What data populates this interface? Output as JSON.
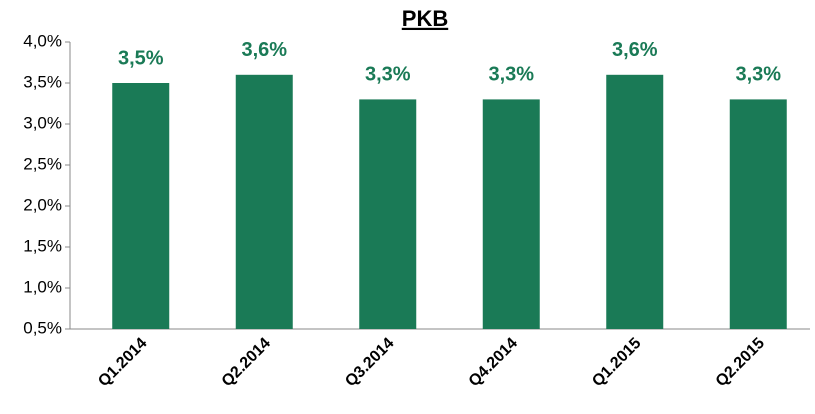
{
  "chart_data": {
    "type": "bar",
    "title": "PKB",
    "categories": [
      "Q1.2014",
      "Q2.2014",
      "Q3.2014",
      "Q4.2014",
      "Q1.2015",
      "Q2.2015"
    ],
    "values": [
      3.5,
      3.6,
      3.3,
      3.3,
      3.6,
      3.3
    ],
    "value_labels": [
      "3,5%",
      "3,6%",
      "3,3%",
      "3,3%",
      "3,6%",
      "3,3%"
    ],
    "color": "#1a7a56",
    "ylim": [
      0.5,
      4.0
    ],
    "yticks": [
      {
        "value": 0.5,
        "label": "0,5%"
      },
      {
        "value": 1.0,
        "label": "1,0%"
      },
      {
        "value": 1.5,
        "label": "1,5%"
      },
      {
        "value": 2.0,
        "label": "2,0%"
      },
      {
        "value": 2.5,
        "label": "2,5%"
      },
      {
        "value": 3.0,
        "label": "3,0%"
      },
      {
        "value": 3.5,
        "label": "3,5%"
      },
      {
        "value": 4.0,
        "label": "4,0%"
      }
    ],
    "grid": false
  }
}
